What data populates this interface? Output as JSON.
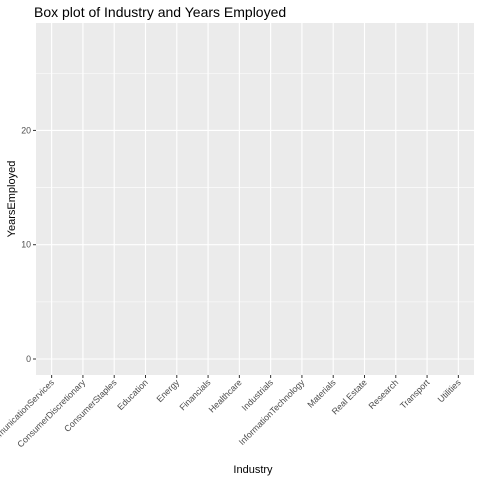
{
  "chart_data": {
    "type": "box",
    "title": "Box plot of Industry and Years Employed",
    "xlabel": "Industry",
    "ylabel": "YearsEmployed",
    "categories": [
      "CommunicationServices",
      "ConsumerDiscretionary",
      "ConsumerStaples",
      "Education",
      "Energy",
      "Financials",
      "Healthcare",
      "Industrials",
      "InformationTechnology",
      "Materials",
      "Real Estate",
      "Research",
      "Transport",
      "Utilities"
    ],
    "yticks": [
      0,
      10,
      20
    ],
    "ylim": [
      -1.4,
      29.4
    ],
    "grid": true,
    "panel_background": "#EBEBEB",
    "grid_major_color": "#FFFFFF",
    "legend": "none"
  }
}
